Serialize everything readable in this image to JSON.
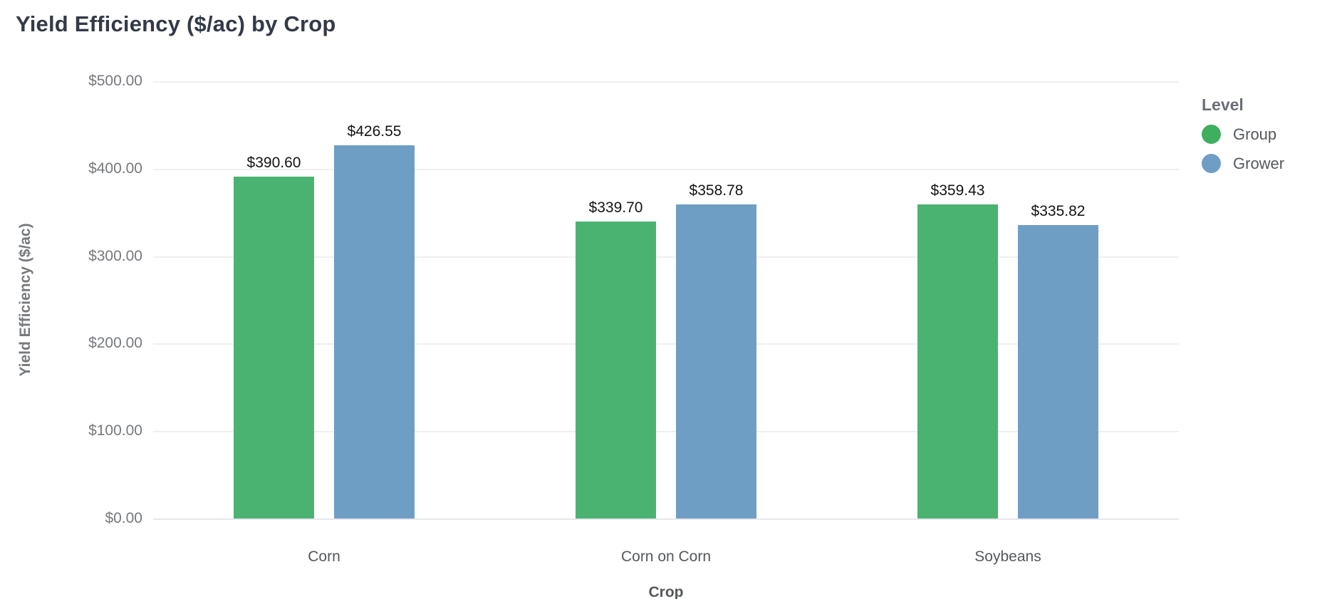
{
  "title": "Yield Efficiency ($/ac) by Crop",
  "colors": {
    "series_group": "#4bb371",
    "series_grower": "#6f9ec5",
    "title_text": "#333947",
    "axis_text": "#76797d",
    "tick_text": "#55585c",
    "value_label_text": "#141414",
    "gridline": "#f0f0f3"
  },
  "chart_data": {
    "type": "bar",
    "title": "Yield Efficiency ($/ac) by Crop",
    "xlabel": "Crop",
    "ylabel": "Yield Efficiency ($/ac)",
    "categories": [
      "Corn",
      "Corn on Corn",
      "Soybeans"
    ],
    "series": [
      {
        "name": "Group",
        "color": "#4bb371",
        "values": [
          390.6,
          339.7,
          359.43
        ],
        "labels": [
          "$390.60",
          "$339.70",
          "$359.43"
        ]
      },
      {
        "name": "Grower",
        "color": "#6f9ec5",
        "values": [
          426.55,
          358.78,
          335.82
        ],
        "labels": [
          "$426.55",
          "$358.78",
          "$335.82"
        ]
      }
    ],
    "ylim": [
      0,
      500
    ],
    "y_ticks": [
      {
        "value": 0,
        "label": "$0.00"
      },
      {
        "value": 100,
        "label": "$100.00"
      },
      {
        "value": 200,
        "label": "$200.00"
      },
      {
        "value": 300,
        "label": "$300.00"
      },
      {
        "value": 400,
        "label": "$400.00"
      },
      {
        "value": 500,
        "label": "$500.00"
      }
    ],
    "grid": true,
    "legend_position": "right",
    "legend_title": "Level",
    "legend_items": [
      {
        "label": "Group",
        "color": "#3fae5e"
      },
      {
        "label": "Grower",
        "color": "#6f9ec5"
      }
    ]
  }
}
